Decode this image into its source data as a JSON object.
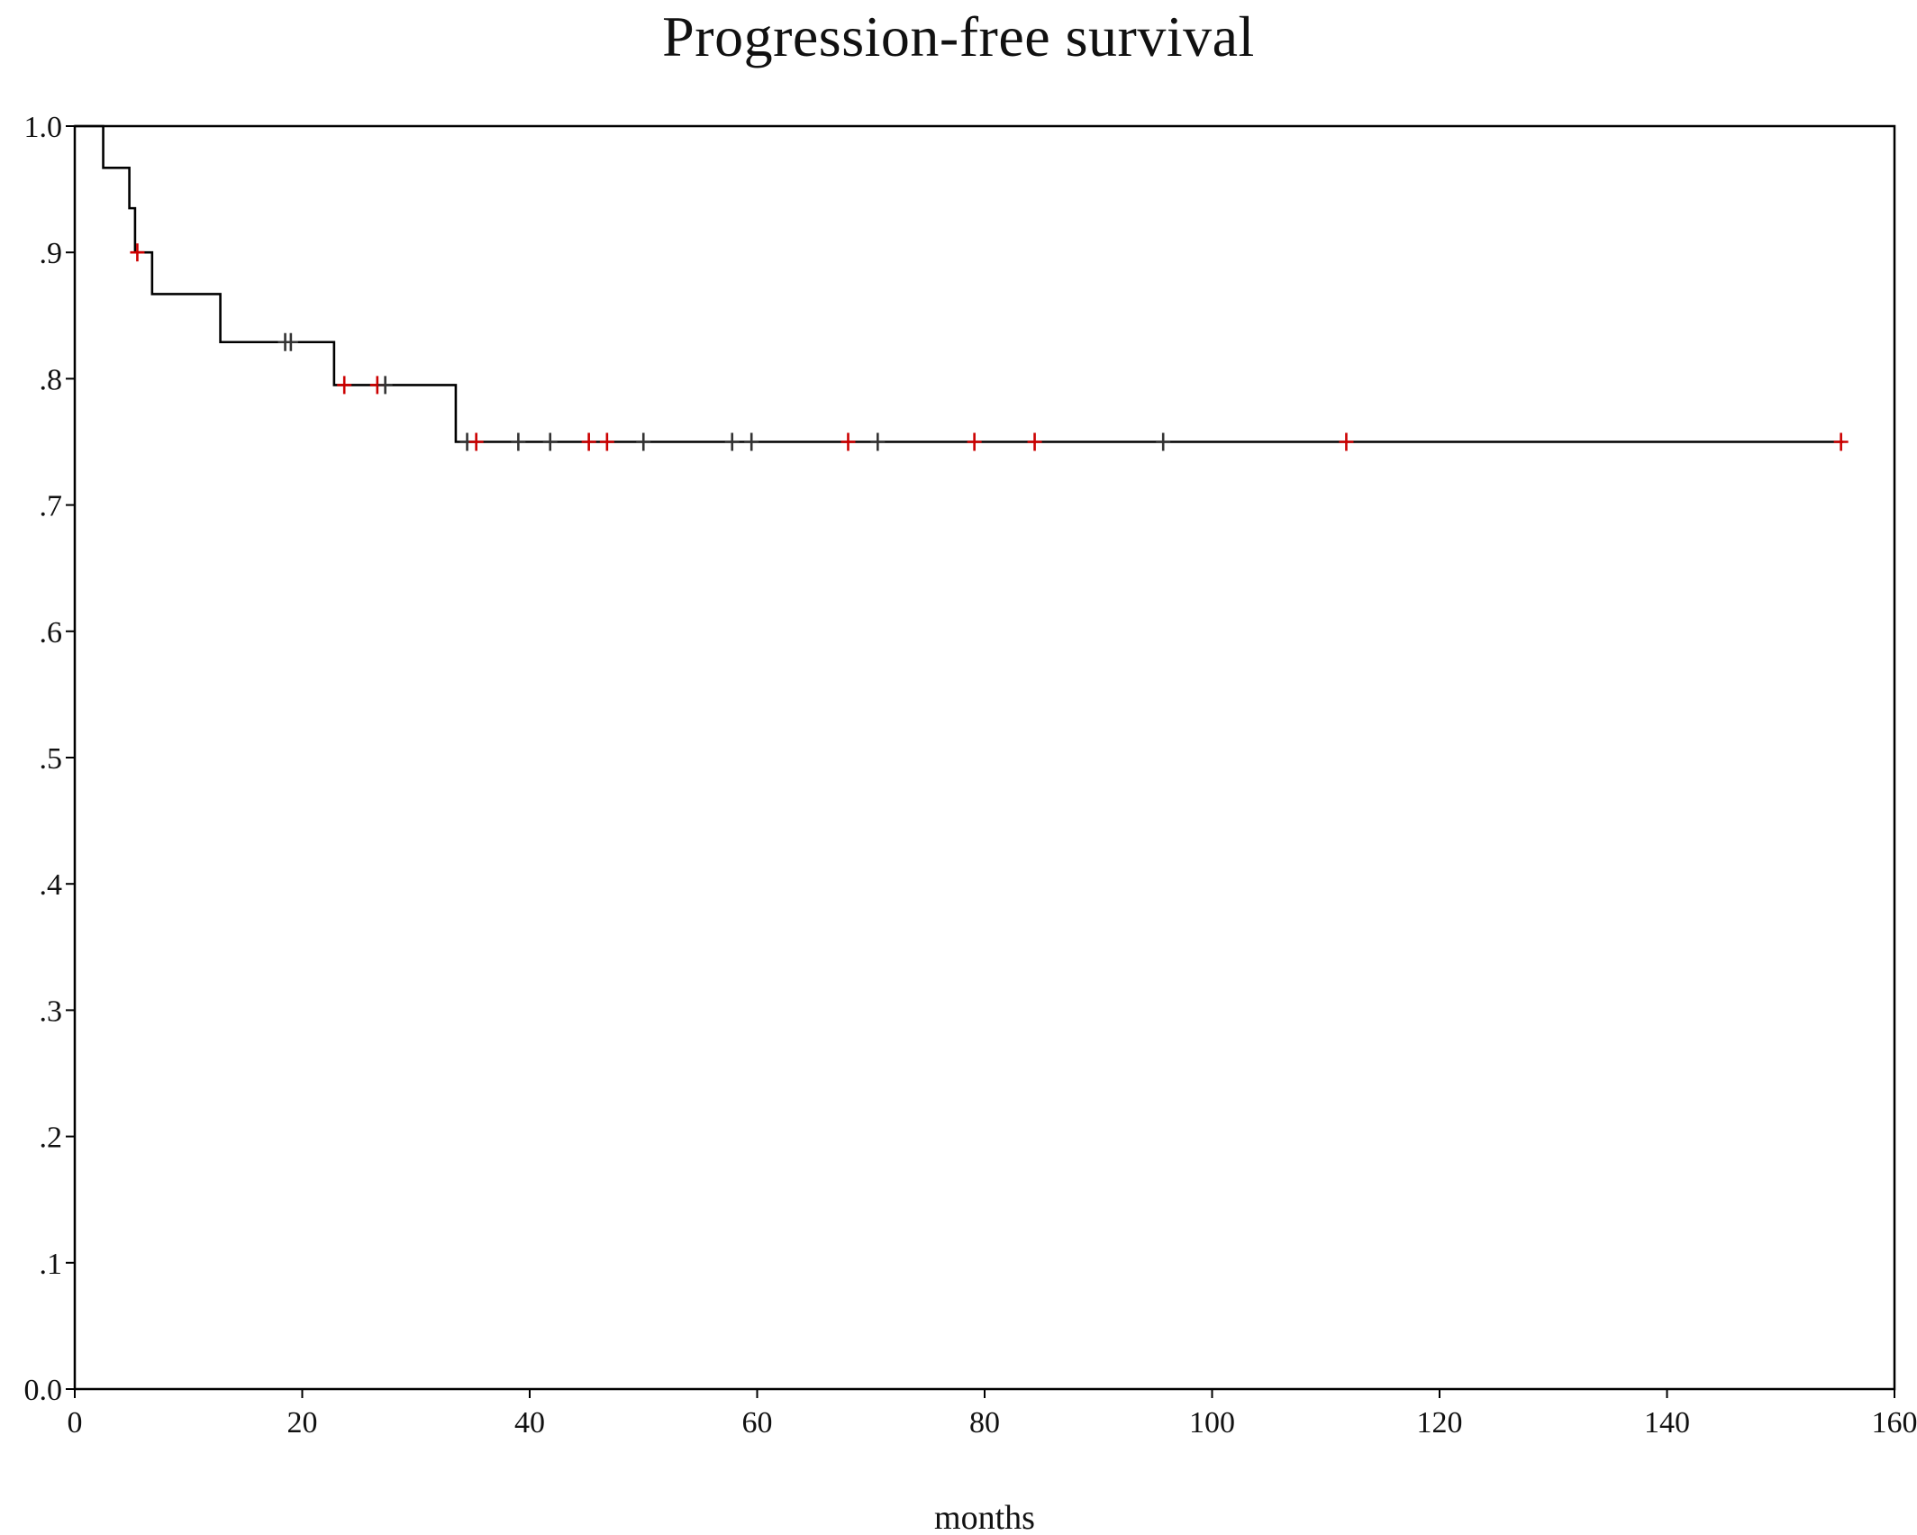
{
  "chart_data": {
    "type": "line",
    "title": "Progression-free survival",
    "xlabel": "months",
    "ylabel": "",
    "xlim": [
      0,
      160
    ],
    "ylim": [
      0,
      1.0
    ],
    "x_ticks": [
      0,
      20,
      40,
      60,
      80,
      100,
      120,
      140,
      160
    ],
    "x_tick_labels": [
      "0",
      "20",
      "40",
      "60",
      "80",
      "100",
      "120",
      "140",
      "160"
    ],
    "y_ticks": [
      0,
      0.1,
      0.2,
      0.3,
      0.4,
      0.5,
      0.6,
      0.7,
      0.8,
      0.9,
      1.0
    ],
    "y_tick_labels": [
      "0.0",
      ".1",
      ".2",
      ".3",
      ".4",
      ".5",
      ".6",
      ".7",
      ".8",
      ".9",
      "1.0"
    ],
    "grid": false,
    "series": [
      {
        "line_color": "#000000",
        "steps": [
          {
            "x": 0,
            "y": 1.0
          },
          {
            "x": 2.5,
            "y": 0.967
          },
          {
            "x": 4.8,
            "y": 0.935
          },
          {
            "x": 5.3,
            "y": 0.9
          },
          {
            "x": 6.8,
            "y": 0.867
          },
          {
            "x": 12.8,
            "y": 0.829
          },
          {
            "x": 22.8,
            "y": 0.795
          },
          {
            "x": 33.5,
            "y": 0.75
          }
        ],
        "x_end": 155.5,
        "censored": [
          {
            "x": 5.5,
            "y": 0.9,
            "color": "#cc0000"
          },
          {
            "x": 18.5,
            "y": 0.829,
            "color": "#333333"
          },
          {
            "x": 19.0,
            "y": 0.829,
            "color": "#333333"
          },
          {
            "x": 23.7,
            "y": 0.795,
            "color": "#cc0000"
          },
          {
            "x": 26.6,
            "y": 0.795,
            "color": "#cc0000"
          },
          {
            "x": 27.3,
            "y": 0.795,
            "color": "#333333"
          },
          {
            "x": 34.5,
            "y": 0.75,
            "color": "#333333"
          },
          {
            "x": 35.3,
            "y": 0.75,
            "color": "#cc0000"
          },
          {
            "x": 39.0,
            "y": 0.75,
            "color": "#333333"
          },
          {
            "x": 41.8,
            "y": 0.75,
            "color": "#333333"
          },
          {
            "x": 45.2,
            "y": 0.75,
            "color": "#cc0000"
          },
          {
            "x": 46.8,
            "y": 0.75,
            "color": "#cc0000"
          },
          {
            "x": 50.0,
            "y": 0.75,
            "color": "#333333"
          },
          {
            "x": 57.8,
            "y": 0.75,
            "color": "#333333"
          },
          {
            "x": 59.5,
            "y": 0.75,
            "color": "#333333"
          },
          {
            "x": 68.0,
            "y": 0.75,
            "color": "#cc0000"
          },
          {
            "x": 70.6,
            "y": 0.75,
            "color": "#333333"
          },
          {
            "x": 79.1,
            "y": 0.75,
            "color": "#cc0000"
          },
          {
            "x": 84.4,
            "y": 0.75,
            "color": "#cc0000"
          },
          {
            "x": 95.7,
            "y": 0.75,
            "color": "#333333"
          },
          {
            "x": 111.8,
            "y": 0.75,
            "color": "#cc0000"
          },
          {
            "x": 155.3,
            "y": 0.75,
            "color": "#cc0000"
          }
        ]
      }
    ]
  }
}
